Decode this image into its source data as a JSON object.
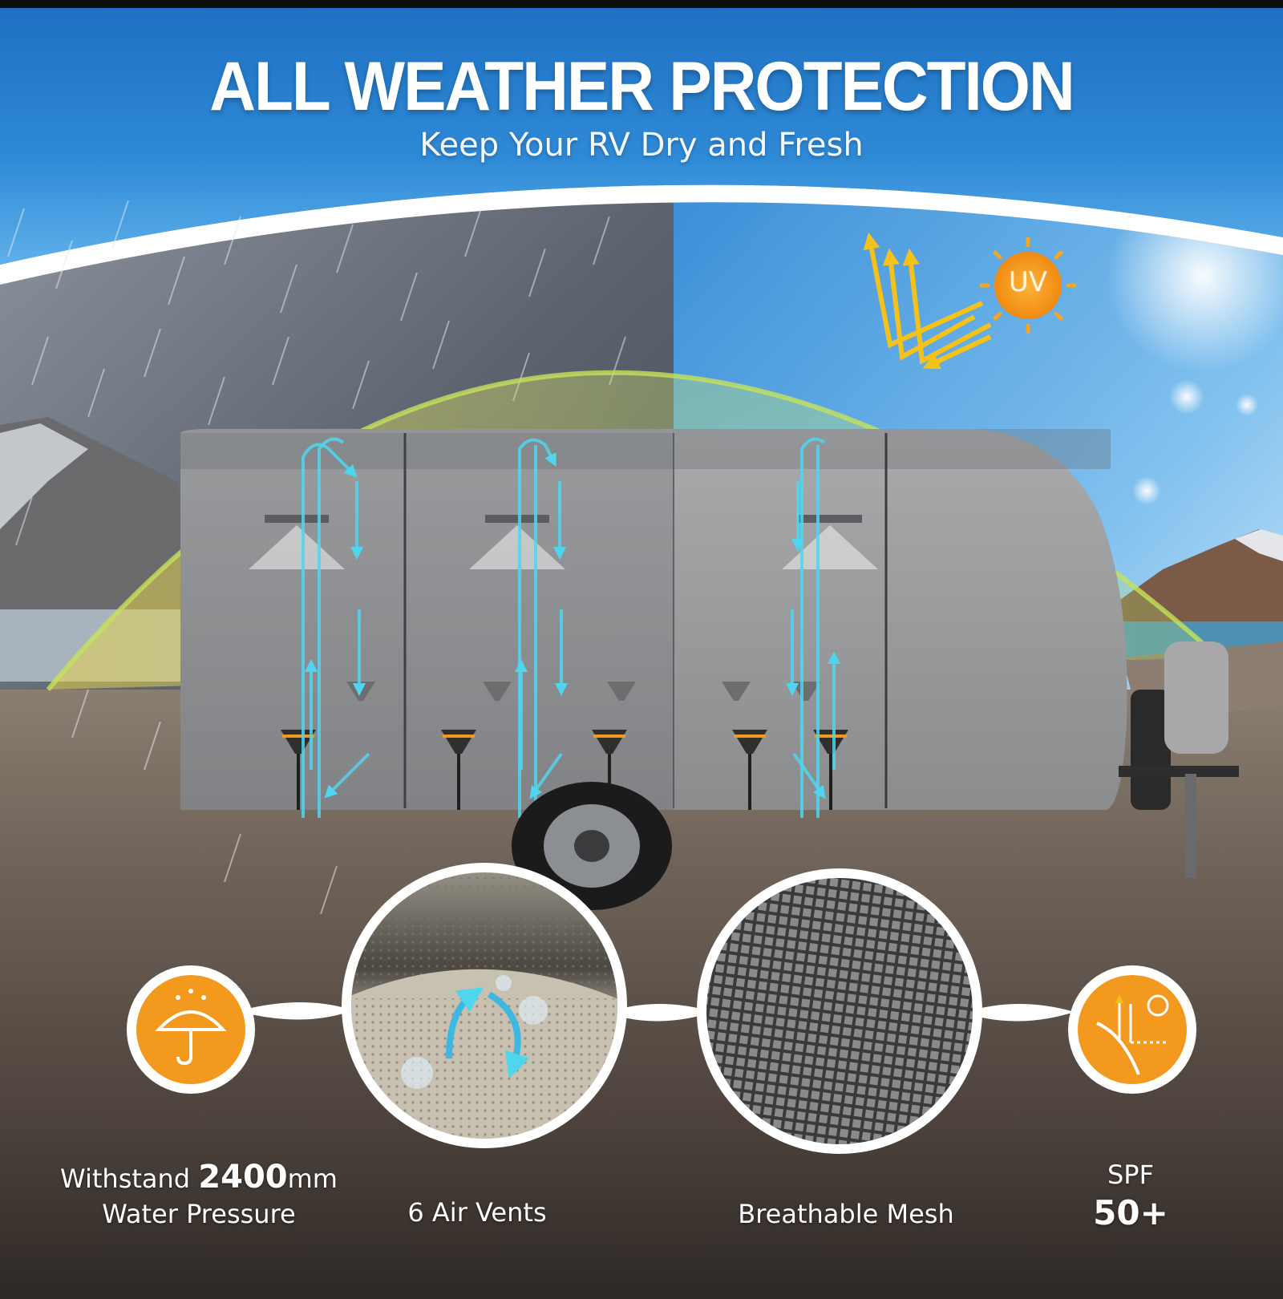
{
  "banner": {
    "title": "ALL WEATHER PROTECTION",
    "subtitle": "Keep Your RV Dry and Fresh"
  },
  "scene": {
    "sun_badge": "UV",
    "palette": {
      "sky_blue": "#2f86d4",
      "storm_gray": "#5a6270",
      "cover_gray": "#9b9c9e",
      "accent_orange": "#f39a1e",
      "airflow_cyan": "#4fd6ee",
      "uv_arrow_yellow": "#f5c21a"
    }
  },
  "features": {
    "water": {
      "prefix": "Withstand ",
      "value": "2400",
      "unit": "mm",
      "line2": "Water Pressure",
      "icon": "umbrella-rain-icon"
    },
    "vents": {
      "label": "6 Air Vents",
      "icon": "air-vent-closeup-photo"
    },
    "mesh": {
      "label": "Breathable Mesh",
      "icon": "mesh-closeup-photo"
    },
    "spf": {
      "label": "SPF",
      "value": "50+",
      "icon": "uv-reflect-icon"
    }
  }
}
